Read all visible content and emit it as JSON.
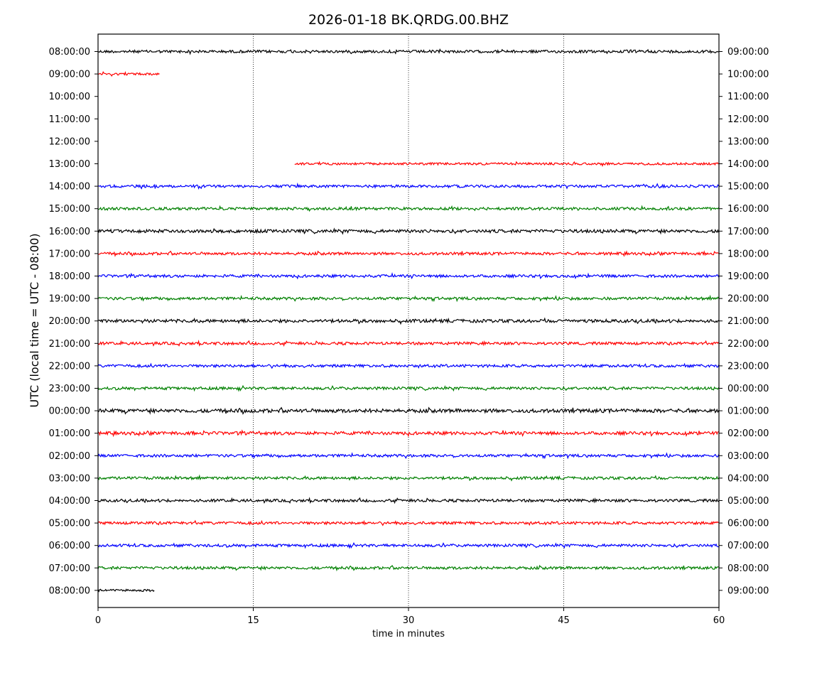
{
  "chart_data": {
    "type": "line",
    "title": "2026-01-18 BK.QRDG.00.BHZ",
    "xlabel": "time in minutes",
    "ylabel": "UTC (local time = UTC - 08:00)",
    "xlim": [
      0,
      60
    ],
    "x_ticks": [
      0,
      15,
      30,
      45,
      60
    ],
    "grid": "vertical dotted at 15, 30, 45",
    "left_tick_labels": [
      "08:00:00",
      "09:00:00",
      "10:00:00",
      "11:00:00",
      "12:00:00",
      "13:00:00",
      "14:00:00",
      "15:00:00",
      "16:00:00",
      "17:00:00",
      "18:00:00",
      "19:00:00",
      "20:00:00",
      "21:00:00",
      "22:00:00",
      "23:00:00",
      "00:00:00",
      "01:00:00",
      "02:00:00",
      "03:00:00",
      "04:00:00",
      "05:00:00",
      "06:00:00",
      "07:00:00",
      "08:00:00"
    ],
    "right_tick_labels": [
      "09:00:00",
      "10:00:00",
      "11:00:00",
      "12:00:00",
      "13:00:00",
      "14:00:00",
      "15:00:00",
      "16:00:00",
      "17:00:00",
      "18:00:00",
      "19:00:00",
      "20:00:00",
      "21:00:00",
      "22:00:00",
      "23:00:00",
      "00:00:00",
      "01:00:00",
      "02:00:00",
      "03:00:00",
      "04:00:00",
      "05:00:00",
      "06:00:00",
      "07:00:00",
      "08:00:00",
      "09:00:00"
    ],
    "colors": [
      "#000000",
      "#ff0000",
      "#0000ff",
      "#008000"
    ],
    "traces": [
      {
        "color": "#000000",
        "start_min": 0,
        "end_min": 60,
        "amplitude": 0.06
      },
      {
        "color": "#ff0000",
        "start_min": 0,
        "end_min": 6,
        "amplitude": 0.05
      },
      {
        "color": "#0000ff",
        "start_min": 0,
        "end_min": 0,
        "amplitude": 0
      },
      {
        "color": "#008000",
        "start_min": 0,
        "end_min": 0,
        "amplitude": 0
      },
      {
        "color": "#000000",
        "start_min": 0,
        "end_min": 0,
        "amplitude": 0
      },
      {
        "color": "#ff0000",
        "start_min": 19,
        "end_min": 60,
        "amplitude": 0.05
      },
      {
        "color": "#0000ff",
        "start_min": 0,
        "end_min": 60,
        "amplitude": 0.06
      },
      {
        "color": "#008000",
        "start_min": 0,
        "end_min": 60,
        "amplitude": 0.06
      },
      {
        "color": "#000000",
        "start_min": 0,
        "end_min": 60,
        "amplitude": 0.07
      },
      {
        "color": "#ff0000",
        "start_min": 0,
        "end_min": 60,
        "amplitude": 0.06
      },
      {
        "color": "#0000ff",
        "start_min": 0,
        "end_min": 60,
        "amplitude": 0.06
      },
      {
        "color": "#008000",
        "start_min": 0,
        "end_min": 60,
        "amplitude": 0.06
      },
      {
        "color": "#000000",
        "start_min": 0,
        "end_min": 60,
        "amplitude": 0.07
      },
      {
        "color": "#ff0000",
        "start_min": 0,
        "end_min": 60,
        "amplitude": 0.06
      },
      {
        "color": "#0000ff",
        "start_min": 0,
        "end_min": 60,
        "amplitude": 0.06
      },
      {
        "color": "#008000",
        "start_min": 0,
        "end_min": 60,
        "amplitude": 0.06
      },
      {
        "color": "#000000",
        "start_min": 0,
        "end_min": 60,
        "amplitude": 0.08
      },
      {
        "color": "#ff0000",
        "start_min": 0,
        "end_min": 60,
        "amplitude": 0.07
      },
      {
        "color": "#0000ff",
        "start_min": 0,
        "end_min": 60,
        "amplitude": 0.06
      },
      {
        "color": "#008000",
        "start_min": 0,
        "end_min": 60,
        "amplitude": 0.06
      },
      {
        "color": "#000000",
        "start_min": 0,
        "end_min": 60,
        "amplitude": 0.06
      },
      {
        "color": "#ff0000",
        "start_min": 0,
        "end_min": 60,
        "amplitude": 0.06
      },
      {
        "color": "#0000ff",
        "start_min": 0,
        "end_min": 60,
        "amplitude": 0.06
      },
      {
        "color": "#008000",
        "start_min": 0,
        "end_min": 60,
        "amplitude": 0.06
      },
      {
        "color": "#000000",
        "start_min": 0,
        "end_min": 5.5,
        "amplitude": 0.05
      }
    ]
  }
}
